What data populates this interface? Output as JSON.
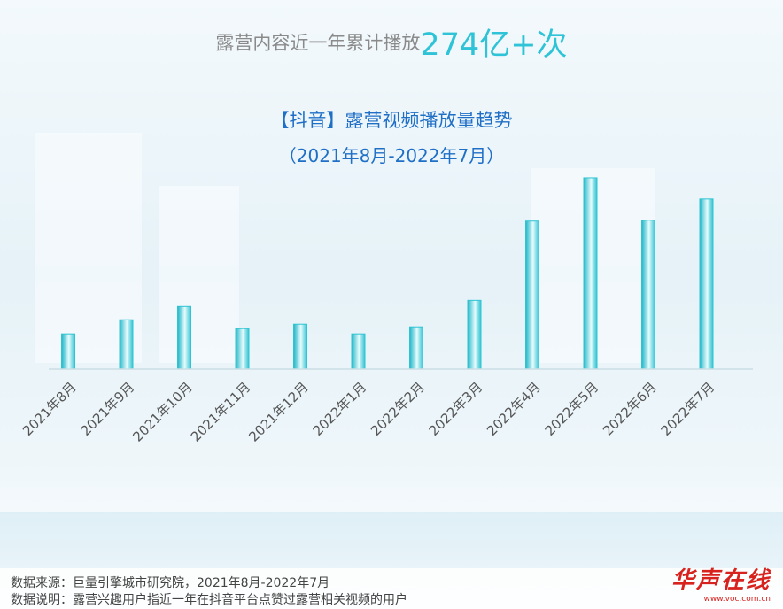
{
  "headline": {
    "prefix": "露营内容近一年累计播放",
    "highlight": "274亿+次"
  },
  "chart_data": {
    "type": "bar",
    "title": "【抖音】露营视频播放量趋势",
    "subtitle": "（2021年8月-2022年7月）",
    "categories": [
      "2021年8月",
      "2021年9月",
      "2021年10月",
      "2021年11月",
      "2021年12月",
      "2022年1月",
      "2022年2月",
      "2022年3月",
      "2022年4月",
      "2022年5月",
      "2022年6月",
      "2022年7月"
    ],
    "values": [
      40,
      56,
      71,
      46,
      51,
      40,
      48,
      78,
      168,
      217,
      169,
      193
    ],
    "ylim": [
      0,
      230
    ],
    "bar_color": "#2fc4d3",
    "bar_color_light": "#bdeef3",
    "axis_visible": false,
    "grid": false
  },
  "footnotes": {
    "source": "数据来源：巨量引擎城市研究院，2021年8月-2022年7月",
    "note": "数据说明：露营兴趣用户指近一年在抖音平台点赞过露营相关视频的用户"
  },
  "logo": {
    "mark": "华声在线",
    "url": "www.voc.com.cn"
  },
  "colors": {
    "accent": "#2ec3d6",
    "title_blue": "#1f6fc7",
    "logo_red": "#d8221d"
  }
}
